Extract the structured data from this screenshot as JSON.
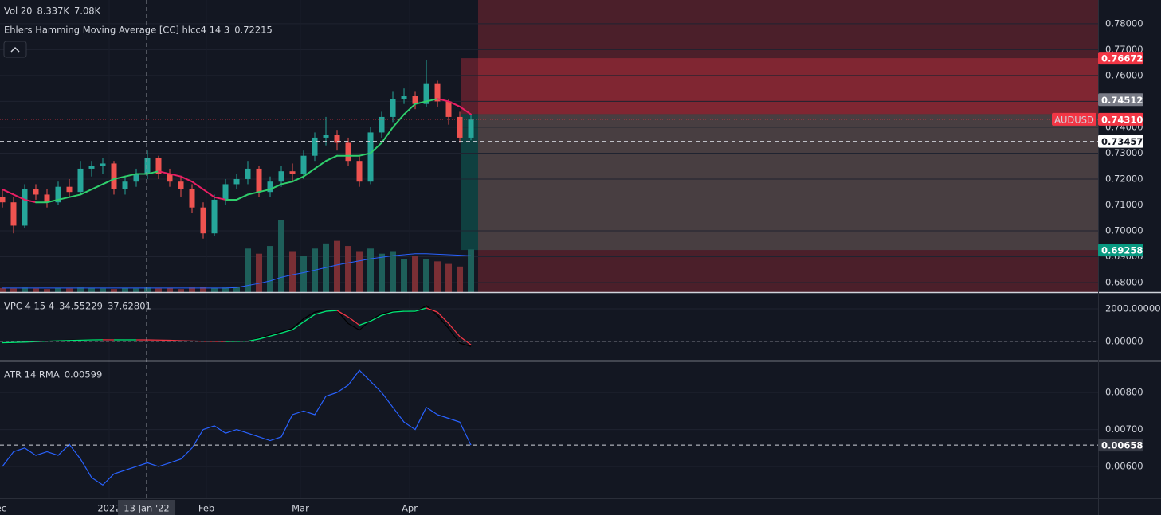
{
  "chart_data": [
    {
      "type": "candlestick",
      "symbol": "AUDUSD",
      "ohlc": [
        [
          0.713,
          0.716,
          0.709,
          0.711
        ],
        [
          0.711,
          0.713,
          0.699,
          0.702
        ],
        [
          0.702,
          0.718,
          0.701,
          0.716
        ],
        [
          0.716,
          0.718,
          0.712,
          0.714
        ],
        [
          0.714,
          0.716,
          0.709,
          0.711
        ],
        [
          0.711,
          0.719,
          0.71,
          0.717
        ],
        [
          0.717,
          0.72,
          0.713,
          0.715
        ],
        [
          0.715,
          0.727,
          0.714,
          0.724
        ],
        [
          0.724,
          0.727,
          0.721,
          0.725
        ],
        [
          0.725,
          0.728,
          0.722,
          0.726
        ],
        [
          0.726,
          0.727,
          0.714,
          0.716
        ],
        [
          0.716,
          0.721,
          0.714,
          0.719
        ],
        [
          0.719,
          0.724,
          0.717,
          0.722
        ],
        [
          0.722,
          0.731,
          0.72,
          0.728
        ],
        [
          0.728,
          0.729,
          0.72,
          0.722
        ],
        [
          0.722,
          0.724,
          0.717,
          0.719
        ],
        [
          0.719,
          0.721,
          0.713,
          0.716
        ],
        [
          0.716,
          0.718,
          0.707,
          0.709
        ],
        [
          0.709,
          0.711,
          0.697,
          0.699
        ],
        [
          0.699,
          0.714,
          0.698,
          0.712
        ],
        [
          0.712,
          0.72,
          0.71,
          0.718
        ],
        [
          0.718,
          0.722,
          0.716,
          0.72
        ],
        [
          0.72,
          0.727,
          0.718,
          0.724
        ],
        [
          0.724,
          0.725,
          0.713,
          0.715
        ],
        [
          0.715,
          0.721,
          0.713,
          0.719
        ],
        [
          0.719,
          0.725,
          0.717,
          0.723
        ],
        [
          0.723,
          0.726,
          0.719,
          0.722
        ],
        [
          0.722,
          0.731,
          0.72,
          0.729
        ],
        [
          0.729,
          0.738,
          0.727,
          0.736
        ],
        [
          0.736,
          0.744,
          0.733,
          0.737
        ],
        [
          0.737,
          0.739,
          0.731,
          0.734
        ],
        [
          0.734,
          0.736,
          0.725,
          0.727
        ],
        [
          0.727,
          0.729,
          0.717,
          0.719
        ],
        [
          0.719,
          0.74,
          0.718,
          0.738
        ],
        [
          0.738,
          0.746,
          0.736,
          0.744
        ],
        [
          0.744,
          0.754,
          0.742,
          0.751
        ],
        [
          0.751,
          0.755,
          0.749,
          0.752
        ],
        [
          0.752,
          0.754,
          0.747,
          0.749
        ],
        [
          0.749,
          0.766,
          0.748,
          0.757
        ],
        [
          0.757,
          0.758,
          0.748,
          0.75
        ],
        [
          0.75,
          0.751,
          0.741,
          0.744
        ],
        [
          0.744,
          0.746,
          0.734,
          0.736
        ],
        [
          0.736,
          0.745,
          0.735,
          0.743
        ]
      ],
      "up_color": "#26a69a",
      "down_color": "#ef5350",
      "xlim": [
        -0.214,
        98.21
      ],
      "xticks": [
        {
          "value": -0.43,
          "label": "Dec"
        },
        {
          "value": 9.57,
          "label": "2022"
        },
        {
          "value": 18.29,
          "label": "Feb"
        },
        {
          "value": 26.71,
          "label": "Mar"
        },
        {
          "value": 36.5,
          "label": "Apr"
        }
      ],
      "ylim": [
        0.6763,
        0.7892
      ],
      "yticks": [
        {
          "value": 0.68,
          "label": "0.68000"
        },
        {
          "value": 0.69,
          "label": "0.69000"
        },
        {
          "value": 0.7,
          "label": "0.70000"
        },
        {
          "value": 0.71,
          "label": "0.71000"
        },
        {
          "value": 0.72,
          "label": "0.72000"
        },
        {
          "value": 0.73,
          "label": "0.73000"
        },
        {
          "value": 0.74,
          "label": "0.74000"
        },
        {
          "value": 0.75,
          "label": "0.75000"
        },
        {
          "value": 0.76,
          "label": "0.76000"
        },
        {
          "value": 0.77,
          "label": "0.77000"
        },
        {
          "value": 0.78,
          "label": "0.78000"
        }
      ],
      "grid": true,
      "ma": {
        "name": "Ehlers Hamming Moving Average [CC] hlcc4 14 3",
        "legend_value": "0.72215",
        "up_color": "#2fcf6c",
        "down_color": "#e91e63",
        "values": [
          0.716,
          0.714,
          0.712,
          0.711,
          0.711,
          0.712,
          0.713,
          0.714,
          0.716,
          0.718,
          0.72,
          0.721,
          0.722,
          0.722,
          0.723,
          0.722,
          0.721,
          0.719,
          0.716,
          0.713,
          0.712,
          0.712,
          0.714,
          0.715,
          0.716,
          0.718,
          0.719,
          0.721,
          0.724,
          0.727,
          0.729,
          0.729,
          0.729,
          0.73,
          0.734,
          0.74,
          0.745,
          0.749,
          0.75,
          0.751,
          0.75,
          0.748,
          0.745
        ]
      },
      "volume": {
        "name": "Vol 20",
        "legend_values": [
          "8.337K",
          "7.08K"
        ],
        "ylim": [
          0,
          57
        ],
        "up_color": "#1e5f5a",
        "down_color": "#7a2f35",
        "ma_color": "#2962ff",
        "value_color": "#ef5350",
        "values": [
          0.8,
          0.7,
          0.9,
          0.7,
          0.6,
          0.8,
          0.7,
          0.9,
          0.8,
          0.7,
          0.6,
          0.8,
          0.7,
          0.9,
          0.7,
          0.8,
          0.6,
          0.9,
          1.0,
          0.8,
          0.9,
          1.1,
          8.5,
          7.5,
          9.0,
          14.0,
          8.0,
          7.0,
          8.5,
          9.5,
          10.0,
          9.0,
          8.0,
          8.5,
          7.5,
          8.0,
          6.5,
          7.0,
          6.5,
          6.0,
          5.5,
          5.0,
          8.337
        ],
        "ma": [
          0.8,
          0.8,
          0.8,
          0.8,
          0.8,
          0.8,
          0.8,
          0.8,
          0.8,
          0.8,
          0.8,
          0.8,
          0.8,
          0.8,
          0.8,
          0.8,
          0.8,
          0.8,
          0.8,
          0.8,
          0.8,
          0.9,
          1.3,
          1.7,
          2.2,
          2.9,
          3.4,
          3.8,
          4.3,
          4.8,
          5.3,
          5.7,
          6.1,
          6.5,
          6.8,
          7.1,
          7.3,
          7.5,
          7.5,
          7.4,
          7.3,
          7.2,
          7.08
        ]
      },
      "last_price": {
        "value": 0.7431,
        "label": "0.74310",
        "color": "#f23645"
      },
      "position": {
        "start": 41.14,
        "entry": 0.74512,
        "stop": 0.76672,
        "target": 0.69258
      },
      "highlight_start": 42.64,
      "crosshair": {
        "x": 12.93,
        "x_label": "13 Jan '22",
        "y": 0.73457
      }
    },
    {
      "type": "line",
      "name": "VPC 4 15 4",
      "legend_values": [
        "34.55229",
        "37.62801"
      ],
      "ylim": [
        -1170,
        2976
      ],
      "yticks": [
        {
          "value": 0,
          "label": "0.00000"
        },
        {
          "value": 2000,
          "label": "2000.00000"
        }
      ],
      "series": [
        {
          "color": "#000000",
          "values": [
            -100,
            -80,
            -50,
            0,
            30,
            60,
            80,
            100,
            120,
            110,
            100,
            110,
            100,
            90,
            80,
            60,
            40,
            20,
            0,
            -20,
            -10,
            0,
            20,
            200,
            400,
            600,
            800,
            1400,
            1800,
            1950,
            1900,
            1100,
            700,
            1300,
            1700,
            1850,
            1900,
            1800,
            2200,
            1600,
            800,
            -100,
            -300
          ]
        },
        {
          "up_color": "#00e676",
          "down_color": "#f23645",
          "values": [
            -80,
            -60,
            -40,
            -10,
            20,
            40,
            60,
            80,
            100,
            105,
            100,
            100,
            100,
            95,
            85,
            70,
            50,
            30,
            10,
            0,
            -5,
            0,
            20,
            150,
            330,
            520,
            720,
            1200,
            1650,
            1850,
            1900,
            1500,
            1000,
            1250,
            1600,
            1800,
            1850,
            1850,
            2050,
            1800,
            1100,
            300,
            -200
          ]
        }
      ]
    },
    {
      "type": "line",
      "name": "ATR 14 RMA",
      "legend_value": "0.00599",
      "ylim": [
        0.00514,
        0.00882
      ],
      "yticks": [
        {
          "value": 0.006,
          "label": "0.00600"
        },
        {
          "value": 0.007,
          "label": "0.00700"
        },
        {
          "value": 0.008,
          "label": "0.00800"
        }
      ],
      "series": [
        {
          "color": "#2962ff",
          "values": [
            0.006,
            0.0064,
            0.0065,
            0.0063,
            0.0064,
            0.0063,
            0.0066,
            0.0062,
            0.0057,
            0.0055,
            0.0058,
            0.0059,
            0.006,
            0.0061,
            0.006,
            0.0061,
            0.0062,
            0.0065,
            0.007,
            0.0071,
            0.0069,
            0.007,
            0.0069,
            0.0068,
            0.0067,
            0.0068,
            0.0074,
            0.0075,
            0.0074,
            0.0079,
            0.008,
            0.0082,
            0.0086,
            0.0083,
            0.008,
            0.0076,
            0.0072,
            0.007,
            0.0076,
            0.0074,
            0.0073,
            0.0072,
            0.00658
          ]
        }
      ]
    }
  ]
}
